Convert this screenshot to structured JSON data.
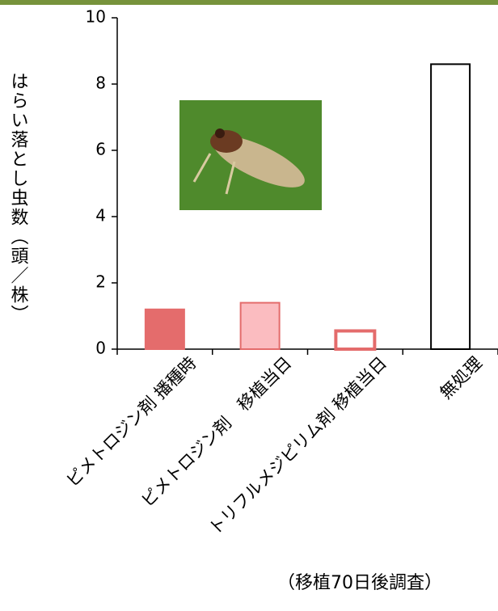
{
  "chart_data": {
    "type": "bar",
    "y_label": "はらい落とし虫数（頭／株）",
    "annotation": "（移植70日後調査）",
    "categories": [
      "ピメトロジン剤 播種時",
      "ピメトロジン剤　移植当日",
      "トリフルメジピリム剤 移植当日",
      "無処理"
    ],
    "values": [
      1.2,
      1.4,
      0.55,
      8.6
    ],
    "colors": [
      "#e46c6c",
      "#fbbcc0",
      "#ffffff",
      "#ffffff"
    ],
    "edge_colors": [
      "#e46c6c",
      "#e46c6c",
      "#e46c6c",
      "#000000"
    ],
    "ylim": [
      0,
      10
    ],
    "yticks": [
      0,
      2,
      4,
      6,
      8,
      10
    ],
    "grid": false
  }
}
